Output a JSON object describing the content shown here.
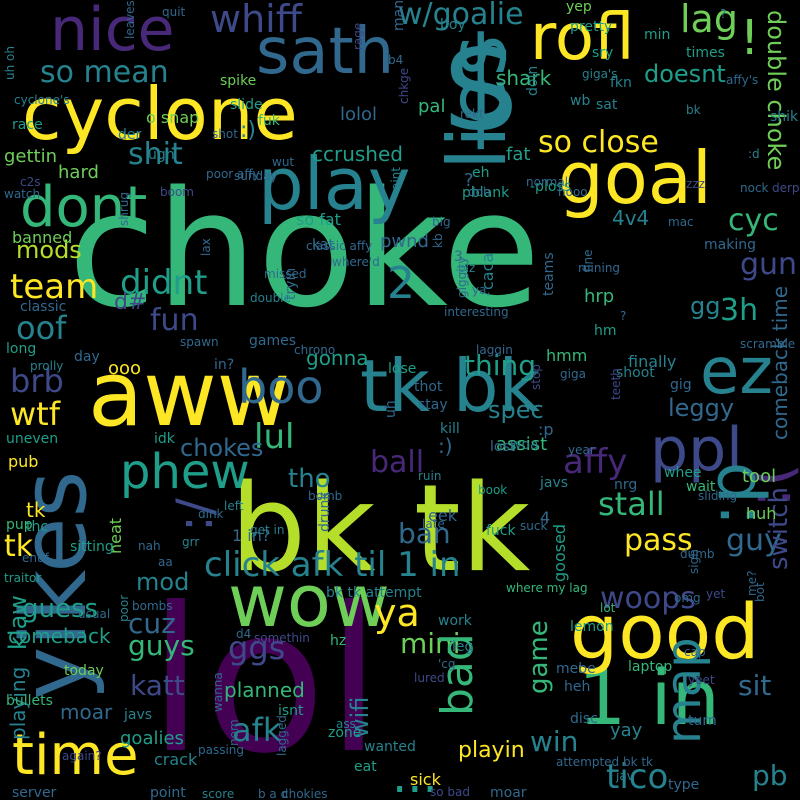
{
  "palette": [
    "#440154",
    "#482878",
    "#3e4989",
    "#31688e",
    "#26828e",
    "#1f9e89",
    "#35b779",
    "#6ece58",
    "#b5de2b",
    "#fde725"
  ],
  "words": [
    {
      "text": "choke",
      "c": 6
    },
    {
      "text": "lol",
      "c": 0
    },
    {
      "text": "bk tk",
      "c": 8
    },
    {
      "text": "$",
      "c": 4
    },
    {
      "text": "yikes",
      "c": 3
    },
    {
      "text": "aww",
      "c": 9
    },
    {
      "text": "wow",
      "c": 7
    },
    {
      "text": "cyclone",
      "c": 9
    },
    {
      "text": "lies",
      "c": 4
    },
    {
      "text": "goal",
      "c": 9
    },
    {
      "text": "play",
      "c": 4
    },
    {
      "text": "tk bk",
      "c": 4
    },
    {
      "text": "1 in",
      "c": 6
    },
    {
      "text": "good",
      "c": 9
    },
    {
      "text": "time",
      "c": 9
    },
    {
      "text": "ez",
      "c": 4
    },
    {
      "text": "ppl",
      "c": 2
    },
    {
      "text": "sath",
      "c": 3
    },
    {
      "text": "nice",
      "c": 1
    },
    {
      "text": "rofl",
      "c": 9
    },
    {
      "text": "dont",
      "c": 6
    },
    {
      "text": ":(",
      "c": 1
    },
    {
      "text": "phew",
      "c": 5
    },
    {
      "text": ":p",
      "c": 4
    },
    {
      "text": "...",
      "c": 5
    },
    {
      "text": "boo",
      "c": 3
    },
    {
      "text": "!",
      "c": 7
    },
    {
      "text": "click afk til 1 in",
      "c": 4
    },
    {
      "text": "map",
      "c": 4
    },
    {
      "text": "whiff",
      "c": 2
    },
    {
      "text": "2",
      "c": 4
    },
    {
      "text": ":/",
      "c": 2
    },
    {
      "text": "double choke",
      "c": 7
    },
    {
      "text": "lag",
      "c": 7
    },
    {
      "text": "team",
      "c": 9
    },
    {
      "text": "so mean",
      "c": 4
    },
    {
      "text": "w/goalie",
      "c": 4
    },
    {
      "text": "doesnt",
      "c": 5
    },
    {
      "text": "so close",
      "c": 9
    },
    {
      "text": "brb",
      "c": 2
    },
    {
      "text": "ya",
      "c": 9
    },
    {
      "text": "wtf",
      "c": 9
    },
    {
      "text": "pass",
      "c": 9
    },
    {
      "text": "shit",
      "c": 4
    },
    {
      "text": "didnt",
      "c": 5
    },
    {
      "text": "fun",
      "c": 2
    },
    {
      "text": "oof",
      "c": 4
    },
    {
      "text": "lul",
      "c": 6
    },
    {
      "text": "ball",
      "c": 1
    },
    {
      "text": "affy",
      "c": 1
    },
    {
      "text": "cyc",
      "c": 6
    },
    {
      "text": "gun",
      "c": 2
    },
    {
      "text": "3h",
      "c": 5
    },
    {
      "text": "woops",
      "c": 2
    },
    {
      "text": "mini",
      "c": 7
    },
    {
      "text": "guy",
      "c": 3
    },
    {
      "text": "sit",
      "c": 3
    },
    {
      "text": "tico",
      "c": 4
    },
    {
      "text": "pb",
      "c": 4
    },
    {
      "text": "win",
      "c": 4
    },
    {
      "text": "afk",
      "c": 4
    },
    {
      "text": "bad",
      "c": 6
    },
    {
      "text": "game",
      "c": 6
    },
    {
      "text": "ggs",
      "c": 2
    },
    {
      "text": "katt",
      "c": 2
    },
    {
      "text": "cuz",
      "c": 3
    },
    {
      "text": "guys",
      "c": 6
    },
    {
      "text": "guess",
      "c": 5
    },
    {
      "text": "mods",
      "c": 8
    },
    {
      "text": "leggy",
      "c": 3
    },
    {
      "text": "chokes",
      "c": 3
    },
    {
      "text": "stall",
      "c": 6
    },
    {
      "text": "spec",
      "c": 4
    },
    {
      "text": "thing",
      "c": 5
    },
    {
      "text": "ban",
      "c": 3
    },
    {
      "text": "tk",
      "c": 9
    },
    {
      "text": "switch",
      "c": 2
    },
    {
      "text": "comeback time",
      "c": 3
    },
    {
      "text": "mod",
      "c": 4
    },
    {
      "text": "tho",
      "c": 4
    },
    {
      "text": "playing",
      "c": 4
    },
    {
      "text": "wifi",
      "c": 4
    },
    {
      "text": "planned",
      "c": 6
    },
    {
      "text": "goalies",
      "c": 5
    },
    {
      "text": "moar",
      "c": 3
    },
    {
      "text": "playin",
      "c": 9
    },
    {
      "text": "comeback",
      "c": 5
    },
    {
      "text": "klaw",
      "c": 5
    },
    {
      "text": "gettin",
      "c": 7
    },
    {
      "text": "hard",
      "c": 7
    },
    {
      "text": "ccrushed",
      "c": 5
    },
    {
      "text": "fat",
      "c": 5
    },
    {
      "text": "so fat",
      "c": 5
    },
    {
      "text": "pwnd",
      "c": 3
    },
    {
      "text": "4v4",
      "c": 4
    },
    {
      "text": "banned",
      "c": 7
    },
    {
      "text": "shark",
      "c": 6
    },
    {
      "text": "lolol",
      "c": 3
    },
    {
      "text": "pal",
      "c": 6
    },
    {
      "text": "hrp",
      "c": 6
    },
    {
      "text": "gg",
      "c": 4
    },
    {
      "text": "d#",
      "c": 2
    },
    {
      "text": "tool",
      "c": 7
    },
    {
      "text": "huh",
      "c": 7
    },
    {
      "text": "pub",
      "c": 9
    },
    {
      "text": "ooo",
      "c": 9
    },
    {
      "text": "hmm",
      "c": 6
    },
    {
      "text": "gonna",
      "c": 5
    },
    {
      "text": "yay",
      "c": 4
    },
    {
      "text": "sick",
      "c": 9
    },
    {
      "text": "tk",
      "c": 9
    },
    {
      "text": "crack",
      "c": 4
    },
    {
      "text": "laptop",
      "c": 6
    },
    {
      "text": "bullets",
      "c": 6
    },
    {
      "text": "today",
      "c": 7
    },
    {
      "text": "isnt",
      "c": 5
    },
    {
      "text": "lose",
      "c": 5
    },
    {
      "text": "neat",
      "c": 7
    },
    {
      "text": "eek",
      "c": 3
    },
    {
      "text": "assist",
      "c": 6
    },
    {
      "text": "1 in?",
      "c": 3
    },
    {
      "text": "yep",
      "c": 7
    },
    {
      "text": "pretty",
      "c": 5
    },
    {
      "text": "min",
      "c": 5
    },
    {
      "text": "times",
      "c": 5
    },
    {
      "text": "sry",
      "c": 5
    },
    {
      "text": "fkn",
      "c": 4
    },
    {
      "text": "sat",
      "c": 4
    },
    {
      "text": "wb",
      "c": 4
    },
    {
      "text": "man",
      "c": 3
    },
    {
      "text": "boy",
      "c": 4
    },
    {
      "text": "doin",
      "c": 4
    },
    {
      "text": "spike",
      "c": 7
    },
    {
      "text": "fuk",
      "c": 6
    },
    {
      "text": "o snap",
      "c": 7
    },
    {
      "text": "slide",
      "c": 5
    },
    {
      "text": "race",
      "c": 5
    },
    {
      "text": "der",
      "c": 4
    },
    {
      "text": "ugh",
      "c": 4
    },
    {
      "text": "eh",
      "c": 5
    },
    {
      "text": "pblank",
      "c": 5
    },
    {
      "text": "-ploss",
      "c": 5
    },
    {
      "text": "teams",
      "c": 3
    },
    {
      "text": "caca",
      "c": 4
    },
    {
      "text": "kat",
      "c": 3
    },
    {
      "text": "long",
      "c": 5
    },
    {
      "text": "classic",
      "c": 3
    },
    {
      "text": "day",
      "c": 3
    },
    {
      "text": "in?",
      "c": 3
    },
    {
      "text": "stay",
      "c": 3
    },
    {
      "text": "thot",
      "c": 3
    },
    {
      "text": "kill",
      "c": 4
    },
    {
      "text": "nrg",
      "c": 3
    },
    {
      "text": "whee",
      "c": 5
    },
    {
      "text": "wait",
      "c": 6
    },
    {
      "text": "javs",
      "c": 4
    },
    {
      "text": "woa",
      "c": 4
    },
    {
      "text": "lost",
      "c": 3
    },
    {
      "text": "idk",
      "c": 5
    },
    {
      "text": "uneven",
      "c": 5
    },
    {
      "text": "pup",
      "c": 6
    },
    {
      "text": "thc",
      "c": 5
    },
    {
      "text": "sitting",
      "c": 5
    },
    {
      "text": "grr",
      "c": 4
    },
    {
      "text": "usual",
      "c": 3
    },
    {
      "text": "bombs",
      "c": 3
    },
    {
      "text": "poor",
      "c": 4
    },
    {
      "text": "hz",
      "c": 6
    },
    {
      "text": "work",
      "c": 4
    },
    {
      "text": "leg",
      "c": 4
    },
    {
      "text": "lemon",
      "c": 5
    },
    {
      "text": "mebe",
      "c": 3
    },
    {
      "text": "heh",
      "c": 3
    },
    {
      "text": "disc",
      "c": 3
    },
    {
      "text": "turn",
      "c": 3
    },
    {
      "text": "type",
      "c": 3
    },
    {
      "text": "moar",
      "c": 3
    },
    {
      "text": "wanted",
      "c": 4
    },
    {
      "text": "eat",
      "c": 5
    },
    {
      "text": "zone",
      "c": 5
    },
    {
      "text": "jav",
      "c": 4
    },
    {
      "text": "server",
      "c": 3
    },
    {
      "text": "score",
      "c": 4
    },
    {
      "text": "b a d",
      "c": 3
    },
    {
      "text": "chokies",
      "c": 3
    },
    {
      "text": "attempted bk tk",
      "c": 3
    },
    {
      "text": "bk tk attempt",
      "c": 4
    },
    {
      "text": "where my lag",
      "c": 6
    },
    {
      "text": "goosed",
      "c": 5
    },
    {
      "text": "lot",
      "c": 6
    },
    {
      "text": "book",
      "c": 5
    },
    {
      "text": "ruin",
      "c": 4
    },
    {
      "text": "late",
      "c": 3
    },
    {
      "text": "fuck",
      "c": 5
    },
    {
      "text": "javs",
      "c": 4
    },
    {
      "text": "traitor",
      "c": 5
    },
    {
      "text": "scramble",
      "c": 3
    },
    {
      "text": "finally",
      "c": 4
    },
    {
      "text": "shoot",
      "c": 4
    },
    {
      "text": "giga",
      "c": 3
    },
    {
      "text": "gig",
      "c": 3
    },
    {
      "text": "hm",
      "c": 5
    },
    {
      "text": "making",
      "c": 3
    },
    {
      "text": "mac",
      "c": 3
    },
    {
      "text": "nock",
      "c": 3
    },
    {
      "text": "zzz",
      "c": 2
    },
    {
      "text": "derp",
      "c": 2
    },
    {
      "text": "shik",
      "c": 4
    },
    {
      "text": "affy's",
      "c": 3
    },
    {
      "text": "uh oh",
      "c": 4
    },
    {
      "text": "cyclone's",
      "c": 4
    },
    {
      "text": "leaves",
      "c": 3
    },
    {
      "text": "quit",
      "c": 3
    },
    {
      "text": "giga's",
      "c": 4
    },
    {
      "text": "rekt",
      "c": 3
    },
    {
      "text": "shot",
      "c": 3
    },
    {
      "text": "wut",
      "c": 3
    },
    {
      "text": "sunday",
      "c": 3
    },
    {
      "text": "watch",
      "c": 3
    },
    {
      "text": "c2s",
      "c": 2
    },
    {
      "text": "poor affy",
      "c": 3
    },
    {
      "text": "boom",
      "c": 2
    },
    {
      "text": "doh",
      "c": 3
    },
    {
      "text": "normal",
      "c": 3
    },
    {
      "text": "hooo",
      "c": 3
    },
    {
      "text": "aint",
      "c": 4
    },
    {
      "text": "classic affy",
      "c": 3
    },
    {
      "text": "where'd",
      "c": 3
    },
    {
      "text": "shrug",
      "c": 3
    },
    {
      "text": "big",
      "c": 3
    },
    {
      "text": "enuf",
      "c": 3
    },
    {
      "text": "nah",
      "c": 3
    },
    {
      "text": "aa",
      "c": 3
    },
    {
      "text": "dink",
      "c": 3
    },
    {
      "text": "left",
      "c": 4
    },
    {
      "text": "get in",
      "c": 4
    },
    {
      "text": "drunk",
      "c": 3
    },
    {
      "text": "bomb",
      "c": 3
    },
    {
      "text": "wanna",
      "c": 3
    },
    {
      "text": "ass",
      "c": 4
    },
    {
      "text": "passing",
      "c": 3
    },
    {
      "text": "lagged",
      "c": 3
    },
    {
      "text": "tryin",
      "c": 3
    },
    {
      "text": "missed",
      "c": 3
    },
    {
      "text": "double",
      "c": 4
    },
    {
      "text": "games",
      "c": 3
    },
    {
      "text": "spawn",
      "c": 3
    },
    {
      "text": "prolly",
      "c": 4
    },
    {
      "text": "lax",
      "c": 3
    },
    {
      "text": "kb",
      "c": 3
    },
    {
      "text": "giggity",
      "c": 3
    },
    {
      "text": "interesting",
      "c": 3
    },
    {
      "text": "plz",
      "c": 4
    },
    {
      "text": "laggin",
      "c": 3
    },
    {
      "text": "bot",
      "c": 3
    },
    {
      "text": "yet",
      "c": 2
    },
    {
      "text": "yeet",
      "c": 2
    },
    {
      "text": "fine",
      "c": 3
    },
    {
      "text": "ruining",
      "c": 3
    },
    {
      "text": "me?",
      "c": 3
    },
    {
      "text": "sigh",
      "c": 3
    },
    {
      "text": "cap",
      "c": 3
    },
    {
      "text": "year",
      "c": 3
    },
    {
      "text": "suck",
      "c": 3
    },
    {
      "text": "sliding",
      "c": 3
    },
    {
      "text": "dumb",
      "c": 3
    },
    {
      "text": "omg",
      "c": 3
    },
    {
      "text": "again?",
      "c": 2
    },
    {
      "text": "nom",
      "c": 3
    },
    {
      "text": "chrono",
      "c": 3
    },
    {
      "text": "stop",
      "c": 2
    },
    {
      "text": "teeth",
      "c": 2
    },
    {
      "text": "?",
      "c": 3
    },
    {
      "text": "?",
      "c": 4
    },
    {
      "text": "?",
      "c": 3
    },
    {
      "text": ":)",
      "c": 4
    },
    {
      "text": ":)",
      "c": 3
    },
    {
      "text": ":p",
      "c": 3
    },
    {
      "text": "4",
      "c": 3
    },
    {
      "text": "3",
      "c": 3
    },
    {
      "text": "d4",
      "c": 3
    },
    {
      "text": "'cg",
      "c": 3
    },
    {
      "text": "b4",
      "c": 3
    },
    {
      "text": "ya,",
      "c": 3
    },
    {
      "text": ":d",
      "c": 4
    },
    {
      "text": "uh",
      "c": 3
    },
    {
      "text": "point",
      "c": 3
    },
    {
      "text": "so bad",
      "c": 2
    },
    {
      "text": "somethin",
      "c": 2
    },
    {
      "text": "lured",
      "c": 2
    },
    {
      "text": "rage",
      "c": 2
    },
    {
      "text": "chkge",
      "c": 2
    },
    {
      "text": "bk",
      "c": 4
    }
  ]
}
